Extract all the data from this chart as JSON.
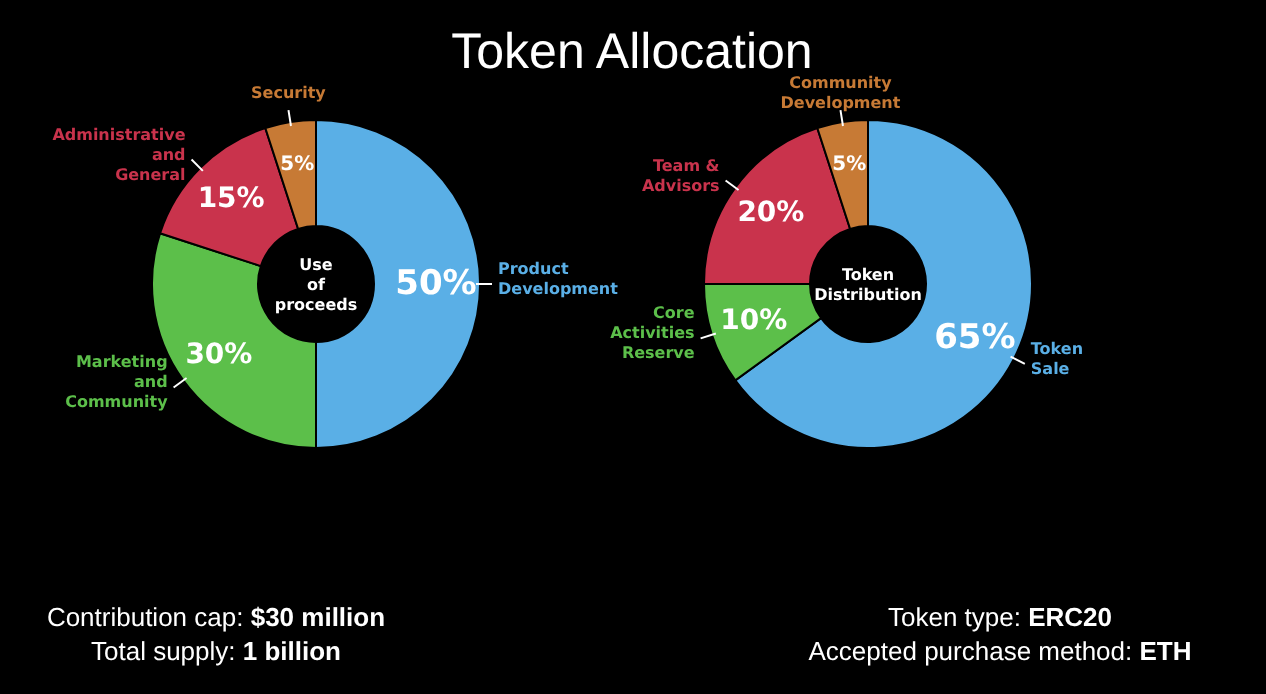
{
  "chart_data": [
    {
      "type": "donut",
      "title": "Token Allocation",
      "categories": [
        "Product Development",
        "Marketing and Community",
        "Administrative and General",
        "Security"
      ],
      "values": [
        50,
        30,
        15,
        5
      ],
      "value_labels": [
        "50%",
        "30%",
        "15%",
        "5%"
      ],
      "colors": [
        "#5aafe6",
        "#5cbf4a",
        "#c9334c",
        "#c77a35"
      ],
      "annotations": [
        "Use of proceeds",
        "Contribution cap: $30 million",
        "Total supply: 1 billion"
      ]
    },
    {
      "type": "donut",
      "categories": [
        "Token Sale",
        "Core Activities Reserve",
        "Team & Advisors",
        "Community Development"
      ],
      "values": [
        65,
        10,
        20,
        5
      ],
      "value_labels": [
        "65%",
        "10%",
        "20%",
        "5%"
      ],
      "colors": [
        "#5aafe6",
        "#5cbf4a",
        "#c9334c",
        "#c77a35"
      ],
      "annotations": [
        "Token Distribution",
        "Token type: ERC20",
        "Accepted purchase method: ETH"
      ]
    }
  ]
}
